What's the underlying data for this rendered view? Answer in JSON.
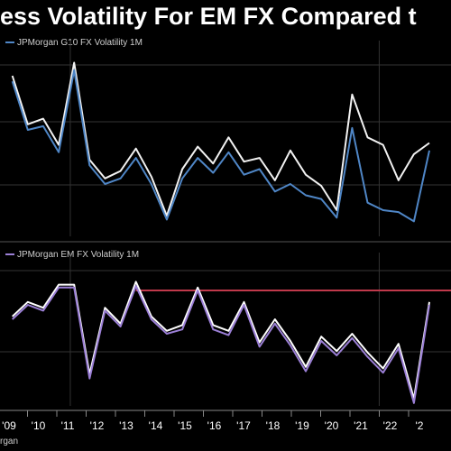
{
  "title": "ess Volatility For EM FX Compared t",
  "source": "rgan",
  "colors": {
    "background": "#000000",
    "top_line_1": "#f2f2f2",
    "top_line_2": "#4f86c6",
    "bottom_line_1": "#ffffff",
    "bottom_line_2": "#9b7fd6",
    "reference_line": "#c0394b",
    "grid": "#333333"
  },
  "chart_data": [
    {
      "type": "line",
      "legend_label": "JPMorgan G10 FX Volatility 1M",
      "legend_placement": "top-left",
      "x": [
        2009,
        2009.5,
        2010,
        2010.5,
        2011,
        2011.5,
        2012,
        2012.5,
        2013,
        2013.5,
        2014,
        2014.5,
        2015,
        2015.5,
        2016,
        2016.5,
        2017,
        2017.5,
        2018,
        2018.5,
        2019,
        2019.5,
        2020,
        2020.5,
        2021,
        2021.5,
        2022,
        2022.5
      ],
      "series": [
        {
          "values": [
            0.86,
            0.6,
            0.63,
            0.49,
            0.93,
            0.41,
            0.31,
            0.35,
            0.47,
            0.32,
            0.11,
            0.36,
            0.48,
            0.39,
            0.53,
            0.4,
            0.42,
            0.3,
            0.46,
            0.33,
            0.27,
            0.14,
            0.76,
            0.53,
            0.49,
            0.3,
            0.44,
            0.5
          ]
        },
        {
          "values": [
            0.83,
            0.57,
            0.59,
            0.45,
            0.89,
            0.38,
            0.28,
            0.31,
            0.42,
            0.28,
            0.09,
            0.31,
            0.42,
            0.34,
            0.45,
            0.33,
            0.36,
            0.24,
            0.28,
            0.22,
            0.2,
            0.1,
            0.58,
            0.18,
            0.14,
            0.13,
            0.08,
            0.46
          ]
        }
      ],
      "grid": true
    },
    {
      "type": "line",
      "legend_label": "JPMorgan EM FX Volatility 1M",
      "legend_placement": "top-left",
      "x": [
        2009,
        2009.5,
        2010,
        2010.5,
        2011,
        2011.5,
        2012,
        2012.5,
        2013,
        2013.5,
        2014,
        2014.5,
        2015,
        2015.5,
        2016,
        2016.5,
        2017,
        2017.5,
        2018,
        2018.5,
        2019,
        2019.5,
        2020,
        2020.5,
        2021,
        2021.5,
        2022,
        2022.5
      ],
      "series": [
        {
          "values": [
            0.62,
            0.72,
            0.68,
            0.84,
            0.84,
            0.22,
            0.68,
            0.57,
            0.86,
            0.62,
            0.52,
            0.56,
            0.82,
            0.56,
            0.52,
            0.72,
            0.44,
            0.6,
            0.45,
            0.27,
            0.48,
            0.38,
            0.5,
            0.37,
            0.26,
            0.43,
            0.05,
            0.72
          ]
        },
        {
          "values": [
            0.6,
            0.7,
            0.66,
            0.82,
            0.82,
            0.19,
            0.66,
            0.55,
            0.83,
            0.6,
            0.5,
            0.53,
            0.8,
            0.53,
            0.49,
            0.7,
            0.41,
            0.57,
            0.42,
            0.24,
            0.45,
            0.35,
            0.47,
            0.34,
            0.23,
            0.4,
            0.02,
            0.7
          ]
        }
      ],
      "reference_line": {
        "value": 0.8,
        "from": 2013
      },
      "grid": true
    }
  ],
  "x_ticks": [
    "'09",
    "'10",
    "'11",
    "'12",
    "'13",
    "'14",
    "'15",
    "'16",
    "'17",
    "'18",
    "'19",
    "'20",
    "'21",
    "'22",
    "'2"
  ]
}
